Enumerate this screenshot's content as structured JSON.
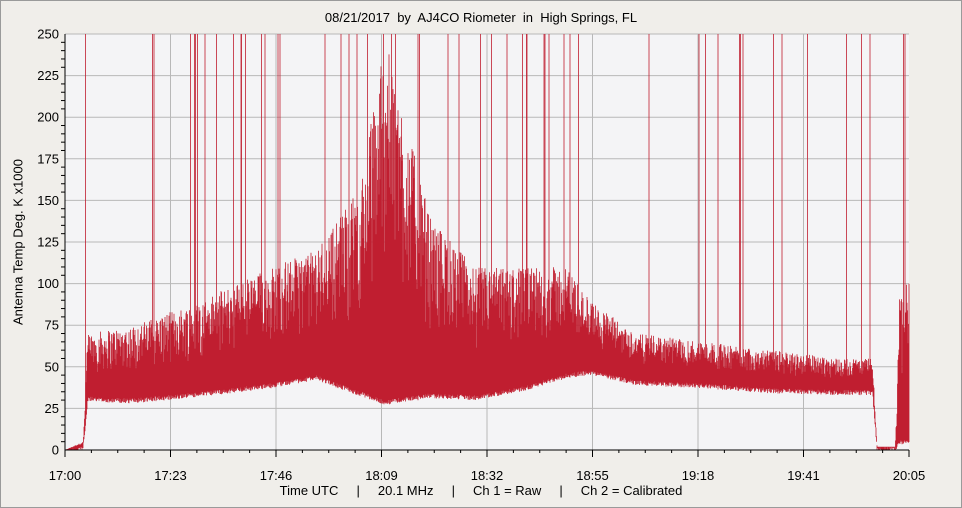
{
  "chart_data": {
    "type": "area",
    "title": "08/21/2017  by  AJ4CO Riometer  in  High Springs, FL",
    "ylabel": "Antenna Temp Deg. K x1000",
    "footer": "Time UTC     |     20.1 MHz     |     Ch 1 = Raw     |     Ch 2 = Calibrated",
    "x_ticks": [
      "17:00",
      "17:23",
      "17:46",
      "18:09",
      "18:32",
      "18:55",
      "19:18",
      "19:41",
      "20:05"
    ],
    "x_range_minutes_utc": [
      1020,
      1205
    ],
    "y_ticks": [
      0,
      25,
      50,
      75,
      100,
      125,
      150,
      175,
      200,
      225,
      250
    ],
    "ylim": [
      0,
      250
    ],
    "grid": true,
    "series": [
      {
        "color": "#c01e30",
        "x_time_utc": [
          "17:00",
          "17:04",
          "17:05",
          "17:15",
          "17:30",
          "17:45",
          "17:55",
          "18:05",
          "18:10",
          "18:20",
          "18:30",
          "18:40",
          "18:50",
          "18:55",
          "19:05",
          "19:20",
          "19:35",
          "19:50",
          "19:57",
          "19:58",
          "20:02",
          "20:03"
        ],
        "floor": [
          0,
          3,
          32,
          31,
          35,
          40,
          45,
          35,
          30,
          34,
          33,
          38,
          46,
          48,
          42,
          40,
          37,
          36,
          36,
          2,
          2,
          6
        ],
        "typical_peak": [
          0,
          5,
          70,
          75,
          90,
          110,
          120,
          160,
          250,
          140,
          110,
          110,
          110,
          90,
          70,
          65,
          60,
          55,
          55,
          2,
          2,
          100
        ]
      }
    ]
  }
}
